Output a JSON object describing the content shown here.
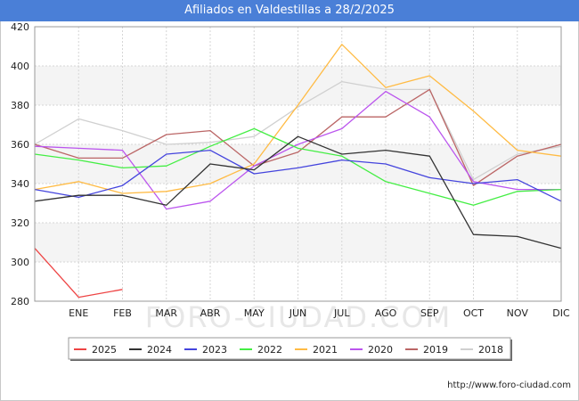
{
  "title": "Afiliados en Valdestillas a 28/2/2025",
  "footer_url": "http://www.foro-ciudad.com",
  "watermark": "FORO-CIUDAD.COM",
  "chart_data": {
    "type": "line",
    "title": "Afiliados en Valdestillas a 28/2/2025",
    "xlabel": "",
    "ylabel": "",
    "categories": [
      "",
      "ENE",
      "FEB",
      "MAR",
      "ABR",
      "MAY",
      "JUN",
      "JUL",
      "AGO",
      "SEP",
      "OCT",
      "NOV",
      "DIC"
    ],
    "ylim": [
      280,
      420
    ],
    "yticks": [
      280,
      300,
      320,
      340,
      360,
      380,
      400,
      420
    ],
    "grid": true,
    "legend_position": "bottom",
    "series": [
      {
        "name": "2025",
        "color": "#ee4444",
        "values": [
          307,
          282,
          286,
          null,
          null,
          null,
          null,
          null,
          null,
          null,
          null,
          null,
          null
        ]
      },
      {
        "name": "2024",
        "color": "#333333",
        "values": [
          331,
          334,
          334,
          329,
          350,
          347,
          364,
          355,
          357,
          354,
          314,
          313,
          307
        ]
      },
      {
        "name": "2023",
        "color": "#4444dd",
        "values": [
          337,
          333,
          339,
          355,
          357,
          345,
          348,
          352,
          350,
          343,
          340,
          342,
          331
        ]
      },
      {
        "name": "2022",
        "color": "#44ee44",
        "values": [
          355,
          352,
          348,
          349,
          359,
          368,
          358,
          354,
          341,
          335,
          329,
          336,
          337
        ]
      },
      {
        "name": "2021",
        "color": "#ffbb44",
        "values": [
          337,
          341,
          335,
          336,
          340,
          350,
          380,
          411,
          389,
          395,
          377,
          357,
          354
        ]
      },
      {
        "name": "2020",
        "color": "#bb55ee",
        "values": [
          359,
          358,
          357,
          327,
          331,
          349,
          360,
          368,
          387,
          374,
          341,
          337,
          337
        ]
      },
      {
        "name": "2019",
        "color": "#bb6666",
        "values": [
          360,
          353,
          353,
          365,
          367,
          349,
          356,
          374,
          374,
          388,
          339,
          354,
          360
        ]
      },
      {
        "name": "2018",
        "color": "#d0d0d0",
        "values": [
          360,
          373,
          367,
          360,
          361,
          364,
          379,
          392,
          388,
          388,
          342,
          355,
          359
        ]
      }
    ]
  }
}
